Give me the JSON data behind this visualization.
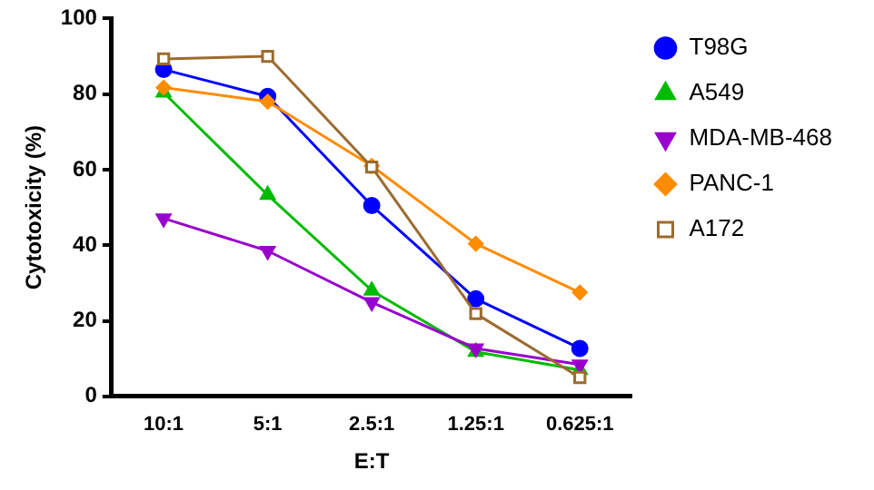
{
  "chart_data": {
    "type": "line",
    "xlabel": "E:T",
    "ylabel": "Cytotoxicity (%)",
    "categories": [
      "10:1",
      "5:1",
      "2.5:1",
      "1.25:1",
      "0.625:1"
    ],
    "ylim": [
      0,
      100
    ],
    "yticks": [
      0,
      20,
      40,
      60,
      80,
      100
    ],
    "grid": false,
    "legend": "right",
    "line_style": "solid",
    "series": [
      {
        "name": "T98G",
        "color": "#0000ff",
        "marker": "circle",
        "values": [
          86.5,
          79.4,
          50.5,
          25.8,
          12.7
        ]
      },
      {
        "name": "A549",
        "color": "#00bb00",
        "marker": "triangle",
        "values": [
          80.4,
          53.3,
          28,
          11.8,
          7
        ]
      },
      {
        "name": "MDA-MB-468",
        "color": "#9900cc",
        "marker": "triangle-down",
        "values": [
          47.1,
          38.5,
          24.9,
          12.7,
          8.4
        ]
      },
      {
        "name": "PANC-1",
        "color": "#ff8c00",
        "marker": "diamond",
        "values": [
          81.7,
          78,
          61,
          40.4,
          27.5
        ]
      },
      {
        "name": "A172",
        "color": "#9c6b30",
        "marker": "square-open",
        "values": [
          89.3,
          90,
          60.7,
          21.9,
          5
        ]
      }
    ]
  }
}
